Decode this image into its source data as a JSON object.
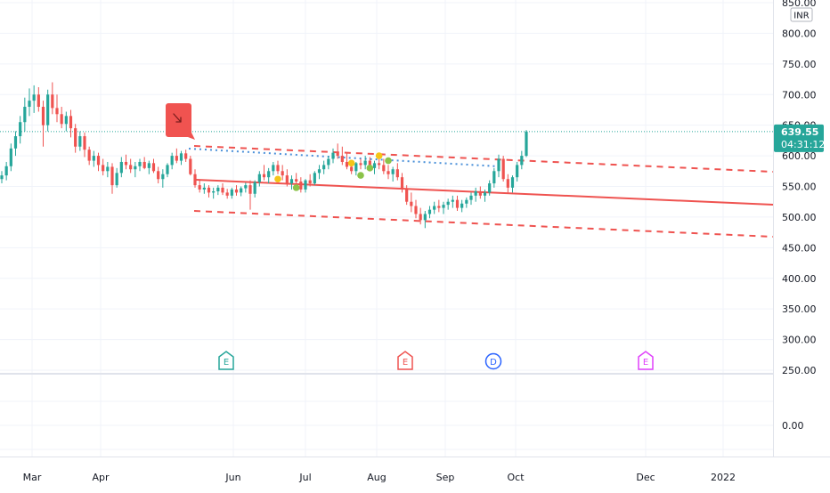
{
  "chart_data": {
    "type": "candlestick",
    "currency": "INR",
    "price_axis": {
      "ticks": [
        "850.00",
        "800.00",
        "750.00",
        "700.00",
        "650.00",
        "600.00",
        "550.00",
        "500.00",
        "450.00",
        "400.00",
        "350.00",
        "300.00",
        "250.00"
      ],
      "range": [
        250,
        850
      ]
    },
    "indicator_axis": {
      "ticks": [
        "0.00"
      ]
    },
    "time_axis": {
      "ticks": [
        "Mar",
        "Apr",
        "Jun",
        "Jul",
        "Aug",
        "Sep",
        "Oct",
        "Dec",
        "2022"
      ]
    },
    "last_price": {
      "value": "639.55",
      "countdown": "04:31:12",
      "color": "#26a69a"
    },
    "candles": [
      [
        562,
        575,
        555,
        568
      ],
      [
        568,
        590,
        560,
        583
      ],
      [
        583,
        620,
        575,
        612
      ],
      [
        612,
        640,
        600,
        632
      ],
      [
        632,
        665,
        620,
        655
      ],
      [
        655,
        695,
        640,
        680
      ],
      [
        680,
        710,
        665,
        690
      ],
      [
        690,
        715,
        670,
        700
      ],
      [
        700,
        712,
        672,
        680
      ],
      [
        680,
        690,
        615,
        650
      ],
      [
        650,
        708,
        640,
        700
      ],
      [
        700,
        720,
        668,
        678
      ],
      [
        678,
        700,
        655,
        668
      ],
      [
        668,
        680,
        645,
        652
      ],
      [
        652,
        672,
        640,
        665
      ],
      [
        665,
        675,
        630,
        645
      ],
      [
        645,
        652,
        605,
        615
      ],
      [
        615,
        640,
        608,
        632
      ],
      [
        632,
        638,
        598,
        610
      ],
      [
        610,
        615,
        585,
        592
      ],
      [
        592,
        608,
        582,
        600
      ],
      [
        600,
        605,
        575,
        585
      ],
      [
        585,
        595,
        568,
        575
      ],
      [
        575,
        590,
        565,
        582
      ],
      [
        582,
        588,
        538,
        552
      ],
      [
        552,
        580,
        548,
        572
      ],
      [
        572,
        598,
        565,
        590
      ],
      [
        590,
        602,
        578,
        585
      ],
      [
        585,
        595,
        572,
        578
      ],
      [
        578,
        590,
        565,
        583
      ],
      [
        583,
        595,
        575,
        590
      ],
      [
        590,
        598,
        578,
        580
      ],
      [
        580,
        592,
        570,
        588
      ],
      [
        588,
        595,
        572,
        575
      ],
      [
        575,
        582,
        555,
        562
      ],
      [
        562,
        578,
        548,
        570
      ],
      [
        570,
        588,
        565,
        585
      ],
      [
        585,
        605,
        578,
        600
      ],
      [
        600,
        612,
        588,
        592
      ],
      [
        592,
        608,
        585,
        604
      ],
      [
        604,
        610,
        590,
        595
      ],
      [
        595,
        600,
        568,
        570
      ],
      [
        570,
        578,
        548,
        552
      ],
      [
        552,
        560,
        540,
        545
      ],
      [
        545,
        555,
        538,
        548
      ],
      [
        548,
        552,
        532,
        540
      ],
      [
        540,
        548,
        530,
        542
      ],
      [
        542,
        552,
        536,
        548
      ],
      [
        548,
        555,
        536,
        540
      ],
      [
        540,
        546,
        530,
        535
      ],
      [
        535,
        548,
        530,
        545
      ],
      [
        545,
        552,
        535,
        540
      ],
      [
        540,
        550,
        534,
        547
      ],
      [
        547,
        556,
        540,
        552
      ],
      [
        552,
        560,
        512,
        538
      ],
      [
        538,
        560,
        532,
        557
      ],
      [
        557,
        575,
        550,
        570
      ],
      [
        570,
        585,
        560,
        565
      ],
      [
        565,
        580,
        555,
        575
      ],
      [
        575,
        590,
        568,
        585
      ],
      [
        585,
        592,
        570,
        575
      ],
      [
        575,
        585,
        560,
        568
      ],
      [
        568,
        578,
        550,
        555
      ],
      [
        555,
        568,
        545,
        562
      ],
      [
        562,
        572,
        552,
        558
      ],
      [
        558,
        565,
        540,
        545
      ],
      [
        545,
        562,
        540,
        560
      ],
      [
        560,
        570,
        550,
        555
      ],
      [
        555,
        575,
        552,
        572
      ],
      [
        572,
        585,
        562,
        578
      ],
      [
        578,
        592,
        570,
        585
      ],
      [
        585,
        600,
        578,
        595
      ],
      [
        595,
        612,
        588,
        605
      ],
      [
        605,
        620,
        595,
        600
      ],
      [
        600,
        615,
        585,
        590
      ],
      [
        590,
        605,
        578,
        582
      ],
      [
        582,
        592,
        570,
        575
      ],
      [
        575,
        590,
        568,
        588
      ],
      [
        588,
        595,
        578,
        585
      ],
      [
        585,
        600,
        578,
        592
      ],
      [
        592,
        598,
        575,
        580
      ],
      [
        580,
        592,
        570,
        588
      ],
      [
        588,
        600,
        578,
        585
      ],
      [
        585,
        595,
        570,
        575
      ],
      [
        575,
        585,
        562,
        570
      ],
      [
        570,
        582,
        558,
        578
      ],
      [
        578,
        588,
        560,
        565
      ],
      [
        565,
        572,
        540,
        545
      ],
      [
        545,
        552,
        520,
        525
      ],
      [
        525,
        540,
        508,
        518
      ],
      [
        518,
        528,
        498,
        505
      ],
      [
        505,
        515,
        488,
        495
      ],
      [
        495,
        510,
        482,
        505
      ],
      [
        505,
        518,
        498,
        512
      ],
      [
        512,
        525,
        505,
        518
      ],
      [
        518,
        528,
        508,
        515
      ],
      [
        515,
        525,
        505,
        520
      ],
      [
        520,
        530,
        512,
        525
      ],
      [
        525,
        535,
        515,
        528
      ],
      [
        528,
        535,
        510,
        515
      ],
      [
        515,
        528,
        508,
        522
      ],
      [
        522,
        532,
        515,
        528
      ],
      [
        528,
        540,
        520,
        535
      ],
      [
        535,
        548,
        525,
        542
      ],
      [
        542,
        550,
        530,
        535
      ],
      [
        535,
        545,
        525,
        540
      ],
      [
        540,
        560,
        535,
        555
      ],
      [
        555,
        580,
        548,
        575
      ],
      [
        575,
        602,
        565,
        595
      ],
      [
        595,
        600,
        558,
        562
      ],
      [
        562,
        570,
        540,
        548
      ],
      [
        548,
        568,
        540,
        565
      ],
      [
        565,
        590,
        558,
        585
      ],
      [
        585,
        608,
        578,
        600
      ],
      [
        600,
        642,
        598,
        639.55
      ]
    ],
    "dots": [
      {
        "price": 562,
        "index": 60,
        "color": "#f5c518"
      },
      {
        "price": 548,
        "index": 64,
        "color": "#8bc34a"
      },
      {
        "price": 588,
        "index": 76,
        "color": "#f5c518"
      },
      {
        "price": 568,
        "index": 78,
        "color": "#8bc34a"
      },
      {
        "price": 580,
        "index": 80,
        "color": "#8bc34a"
      },
      {
        "price": 600,
        "index": 82,
        "color": "#f5c518"
      },
      {
        "price": 592,
        "index": 84,
        "color": "#8bc34a"
      }
    ],
    "event_markers": [
      {
        "label": "E",
        "color": "#26a69a",
        "shape": "earnings",
        "x_frac": 0.272
      },
      {
        "label": "E",
        "color": "#ef5350",
        "shape": "earnings",
        "x_frac": 0.488
      },
      {
        "label": "D",
        "color": "#2962ff",
        "shape": "dividend",
        "x_frac": 0.594
      },
      {
        "label": "E",
        "color": "#e040fb",
        "shape": "earnings",
        "x_frac": 0.778
      }
    ],
    "colors": {
      "up": "#26a69a",
      "down": "#ef5350",
      "trend": "#ef5350",
      "dotted_trend": "#4a90d9",
      "grid": "#f0f3fa",
      "axis_text": "#131722",
      "flag": "#f05350"
    }
  }
}
